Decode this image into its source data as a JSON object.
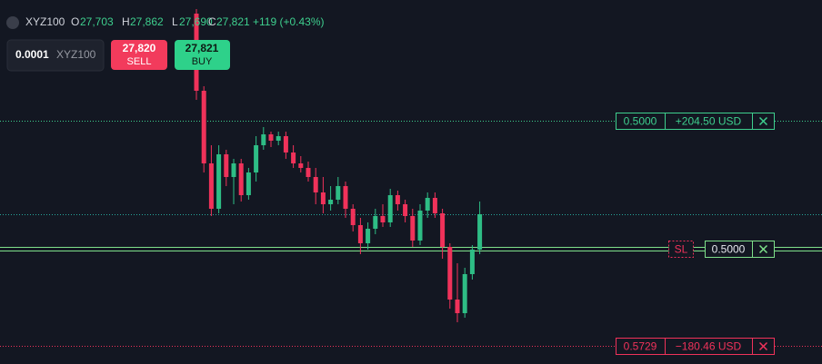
{
  "header": {
    "symbol": "XYZ100",
    "open_label": "O",
    "open": "27,703",
    "high_label": "H",
    "high": "27,862",
    "low_label": "L",
    "low": "27,690",
    "close_label": "C",
    "close": "27,821",
    "change": "+119 (+0.43%)"
  },
  "order_panel": {
    "quantity": "0.0001",
    "symbol": "XYZ100",
    "sell_price": "27,820",
    "sell_label": "SELL",
    "buy_price": "27,821",
    "buy_label": "BUY"
  },
  "chart_data": {
    "type": "candlestick",
    "up_color": "#2ebd85",
    "down_color": "#f0325a",
    "ylim": [
      27656,
      28057
    ],
    "open": [
      28042,
      27957,
      27877,
      27827,
      27887,
      27862,
      27877,
      27842,
      27867,
      27897,
      27909,
      27902,
      27907,
      27889,
      27877,
      27872,
      27862,
      27845,
      27832,
      27837,
      27852,
      27827,
      27809,
      27789,
      27805,
      27819,
      27812,
      27842,
      27832,
      27819,
      27792,
      27825,
      27839,
      27822,
      27785,
      27727,
      27712,
      27755,
      27782
    ],
    "high": [
      28047,
      27962,
      27897,
      27897,
      27892,
      27882,
      27882,
      27872,
      27907,
      27917,
      27912,
      27912,
      27912,
      27897,
      27885,
      27879,
      27872,
      27862,
      27852,
      27862,
      27857,
      27832,
      27817,
      27812,
      27827,
      27832,
      27849,
      27847,
      27837,
      27827,
      27832,
      27845,
      27845,
      27827,
      27789,
      27767,
      27762,
      27787,
      27835
    ],
    "low": [
      27947,
      27867,
      27819,
      27822,
      27852,
      27832,
      27835,
      27837,
      27857,
      27892,
      27895,
      27897,
      27882,
      27872,
      27867,
      27857,
      27832,
      27822,
      27825,
      27832,
      27817,
      27802,
      27777,
      27782,
      27799,
      27807,
      27807,
      27825,
      27812,
      27785,
      27787,
      27817,
      27817,
      27772,
      27717,
      27702,
      27707,
      27749,
      27777
    ],
    "close": [
      27957,
      27877,
      27827,
      27887,
      27862,
      27877,
      27842,
      27867,
      27897,
      27909,
      27902,
      27907,
      27889,
      27877,
      27872,
      27862,
      27845,
      27832,
      27837,
      27852,
      27827,
      27809,
      27789,
      27805,
      27819,
      27812,
      27842,
      27832,
      27819,
      27792,
      27825,
      27839,
      27822,
      27785,
      27727,
      27712,
      27755,
      27782,
      27821
    ],
    "levels": [
      {
        "value": 27924,
        "style": "dotted",
        "color": "#3ecf8e",
        "labels": [
          "0.5000",
          "+204.50 USD"
        ]
      },
      {
        "value": 27821,
        "style": "dotted",
        "color": "#26a69a"
      },
      {
        "value": 27783,
        "style": "double",
        "color": "#7ee08a",
        "tag": "SL",
        "labels": [
          "0.5000"
        ]
      },
      {
        "value": 27676,
        "style": "dotted",
        "color": "#f0325a",
        "labels": [
          "0.5729",
          "−180.46 USD"
        ]
      }
    ]
  }
}
